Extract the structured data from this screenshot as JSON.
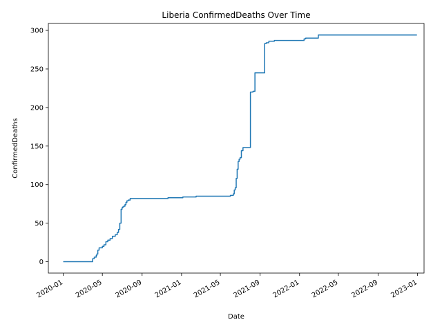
{
  "chart_data": {
    "type": "line",
    "title": "Liberia  ConfirmedDeaths Over Time",
    "xlabel": "Date",
    "ylabel": "ConfirmedDeaths",
    "xlim": [
      "2019-11-16",
      "2023-01-21"
    ],
    "ylim": [
      -14.7,
      309
    ],
    "x_ticks": [
      "2020-01",
      "2020-05",
      "2020-09",
      "2021-01",
      "2021-05",
      "2021-09",
      "2022-01",
      "2022-05",
      "2022-09",
      "2023-01"
    ],
    "y_ticks": [
      0,
      50,
      100,
      150,
      200,
      250,
      300
    ],
    "grid": false,
    "legend": "none",
    "line_color": "#1f77b4",
    "series": [
      {
        "step": true,
        "x": [
          "2020-01-01",
          "2020-03-28",
          "2020-04-01",
          "2020-04-06",
          "2020-04-12",
          "2020-04-14",
          "2020-04-17",
          "2020-04-21",
          "2020-05-01",
          "2020-05-06",
          "2020-05-12",
          "2020-05-18",
          "2020-05-25",
          "2020-06-01",
          "2020-06-10",
          "2020-06-16",
          "2020-06-20",
          "2020-06-24",
          "2020-06-28",
          "2020-07-01",
          "2020-07-03",
          "2020-07-06",
          "2020-07-10",
          "2020-07-13",
          "2020-07-16",
          "2020-07-20",
          "2020-07-26",
          "2020-08-05",
          "2020-11-20",
          "2021-01-05",
          "2021-02-15",
          "2021-05-20",
          "2021-06-01",
          "2021-06-10",
          "2021-06-13",
          "2021-06-16",
          "2021-06-19",
          "2021-06-22",
          "2021-06-25",
          "2021-06-28",
          "2021-07-01",
          "2021-07-05",
          "2021-07-10",
          "2021-07-14",
          "2021-08-02",
          "2021-08-10",
          "2021-08-16",
          "2021-09-15",
          "2021-09-20",
          "2021-09-28",
          "2021-10-15",
          "2022-01-15",
          "2022-01-20",
          "2022-02-28",
          "2022-12-30"
        ],
        "values": [
          0,
          0,
          4,
          6,
          8,
          10,
          15,
          18,
          20,
          22,
          26,
          28,
          30,
          33,
          35,
          38,
          42,
          50,
          68,
          70,
          71,
          72,
          74,
          77,
          79,
          80,
          82,
          82,
          83,
          84,
          85,
          85,
          86,
          88,
          93,
          96,
          108,
          120,
          130,
          133,
          135,
          144,
          148,
          148,
          220,
          221,
          245,
          283,
          284,
          286,
          287,
          289,
          290,
          294,
          294
        ]
      }
    ]
  }
}
